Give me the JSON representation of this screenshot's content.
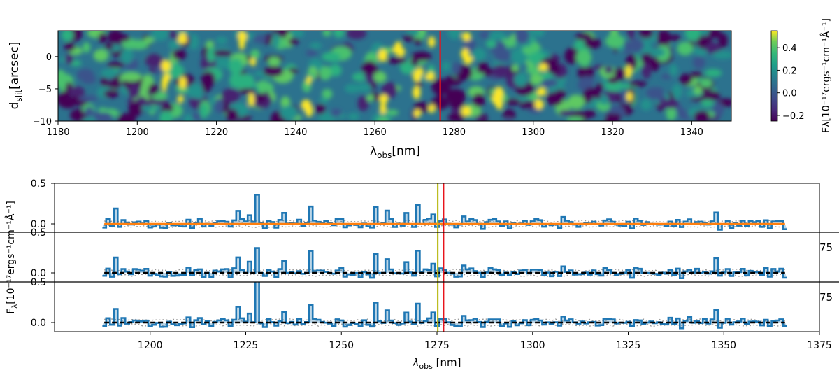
{
  "chart_data": [
    {
      "type": "heatmap",
      "xlabel_main": "λ",
      "xlabel_sub": "obs",
      "xlabel_unit": "[nm]",
      "ylabel_main": "d",
      "ylabel_sub": "slit",
      "ylabel_unit": "[arcsec]",
      "xlim": [
        1180,
        1350
      ],
      "ylim": [
        -10,
        4
      ],
      "x_ticks": [
        1180,
        1200,
        1220,
        1240,
        1260,
        1280,
        1300,
        1320,
        1340
      ],
      "y_ticks": [
        0,
        -5,
        -10
      ],
      "marker_line": {
        "x": 1276.5,
        "color": "#e8141c"
      },
      "colorbar": {
        "label": "Fλ[10⁻¹⁷ergs⁻¹cm⁻¹Å⁻¹]",
        "range": [
          -0.25,
          0.55
        ],
        "ticks": [
          "0.4",
          "0.2",
          "0.0",
          "−0.2"
        ],
        "tick_values": [
          0.4,
          0.2,
          0.0,
          -0.2
        ],
        "colormap": "viridis"
      },
      "bright_columns": [
        1207,
        1211,
        1226,
        1229,
        1243,
        1262,
        1266,
        1271,
        1274,
        1283,
        1291,
        1302,
        1324
      ]
    },
    {
      "type": "line",
      "panels": 3,
      "xlabel_main": "λ",
      "xlabel_sub": "obs",
      "xlabel_unit": "[nm]",
      "ylabel_main": "F",
      "ylabel_sub": "λ",
      "ylabel_unit": "[10⁻¹⁷ergs⁻¹cm⁻¹Å⁻¹]",
      "xlim": [
        1175,
        1375
      ],
      "x_ticks": [
        1200,
        1225,
        1250,
        1275,
        1300,
        1325,
        1350,
        1375
      ],
      "panel_ylim": [
        -0.08,
        0.5
      ],
      "panel_y_ticks": [
        "0.5",
        "0.0"
      ],
      "panel_y_tick_values": [
        0.5,
        0.0
      ],
      "spectrum_range": [
        1188,
        1366
      ],
      "spectrum_color": "#1f77b4",
      "model_colors": [
        "#ff7f0e",
        "#000000",
        "#000000"
      ],
      "marker_lines": [
        {
          "x": 1275.2,
          "color": "#bcbd22"
        },
        {
          "x": 1276.7,
          "color": "#e8141c"
        }
      ],
      "clipped_right_ticks": [
        "75",
        "75"
      ],
      "peaks": [
        {
          "x": 1190.5,
          "y": 0.18
        },
        {
          "x": 1210,
          "y": 0.06
        },
        {
          "x": 1223,
          "y": 0.18
        },
        {
          "x": 1226,
          "y": 0.12
        },
        {
          "x": 1228.2,
          "y": 0.32
        },
        {
          "x": 1235,
          "y": 0.13
        },
        {
          "x": 1241.5,
          "y": 0.24
        },
        {
          "x": 1259,
          "y": 0.24
        },
        {
          "x": 1262,
          "y": 0.15
        },
        {
          "x": 1266.5,
          "y": 0.12
        },
        {
          "x": 1269.5,
          "y": 0.26
        },
        {
          "x": 1273.5,
          "y": 0.11
        },
        {
          "x": 1282,
          "y": 0.08
        },
        {
          "x": 1308,
          "y": 0.08
        },
        {
          "x": 1347.5,
          "y": 0.16
        }
      ]
    }
  ]
}
